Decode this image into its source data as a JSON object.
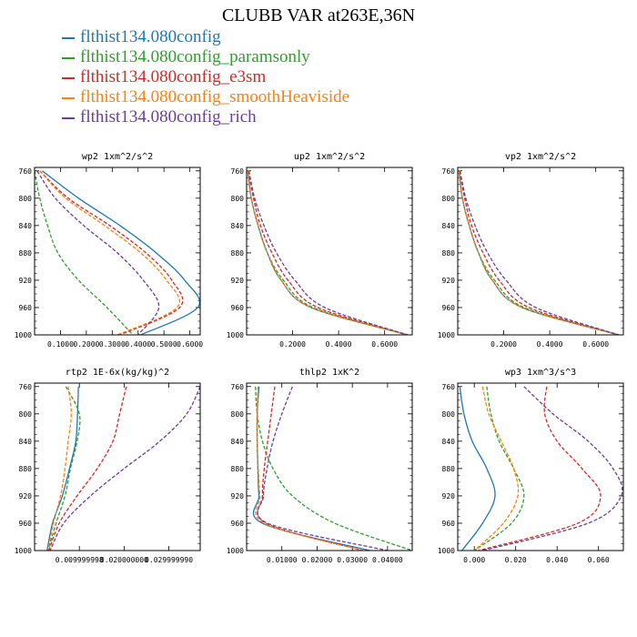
{
  "title": "CLUBB VAR at263E,36N",
  "colors": {
    "flthist134.080config": "#1f77b4",
    "flthist134.080config_paramsonly": "#2ca02c",
    "flthist134.080config_e3sm": "#d62728",
    "flthist134.080config_smoothHeaviside": "#ff7f0e",
    "flthist134.080config_rich": "#6a3d9a"
  },
  "legend": [
    {
      "label": "flthist134.080config",
      "color": "#1f77b4"
    },
    {
      "label": "flthist134.080config_paramsonly",
      "color": "#2ca02c"
    },
    {
      "label": "flthist134.080config_e3sm",
      "color": "#d62728"
    },
    {
      "label": "flthist134.080config_smoothHeaviside",
      "color": "#ff7f0e"
    },
    {
      "label": "flthist134.080config_rich",
      "color": "#6a3d9a"
    }
  ],
  "chart_data": [
    {
      "type": "line",
      "title": "wp2  1xm^2/s^2",
      "xlim": [
        0.0,
        0.64
      ],
      "ylim": [
        1000,
        755
      ],
      "yticks": [
        760,
        800,
        840,
        880,
        920,
        960,
        1000
      ],
      "xticks": [
        0.1,
        0.2,
        0.3,
        0.4,
        0.5,
        0.6
      ],
      "xtick_labels": [
        "0.1000",
        "0.2000",
        "0.3000",
        "0.4000",
        "0.5000",
        "0.6000"
      ],
      "y": [
        760,
        800,
        840,
        880,
        920,
        960,
        1000
      ],
      "series": [
        {
          "name": "flthist134.080config",
          "x": [
            0.03,
            0.17,
            0.33,
            0.47,
            0.58,
            0.63,
            0.41
          ]
        },
        {
          "name": "flthist134.080config_paramsonly",
          "x": [
            0.0,
            0.02,
            0.05,
            0.09,
            0.17,
            0.28,
            0.38
          ]
        },
        {
          "name": "flthist134.080config_e3sm",
          "x": [
            0.02,
            0.13,
            0.29,
            0.43,
            0.53,
            0.56,
            0.33
          ]
        },
        {
          "name": "flthist134.080config_smoothHeaviside",
          "x": [
            0.02,
            0.12,
            0.27,
            0.41,
            0.51,
            0.55,
            0.32
          ]
        },
        {
          "name": "flthist134.080config_rich",
          "x": [
            0.01,
            0.08,
            0.19,
            0.32,
            0.42,
            0.48,
            0.4
          ]
        }
      ]
    },
    {
      "type": "line",
      "title": "up2  1xm^2/s^2",
      "xlim": [
        0.0,
        0.72
      ],
      "ylim": [
        1000,
        755
      ],
      "yticks": [
        760,
        800,
        840,
        880,
        920,
        960,
        1000
      ],
      "xticks": [
        0.2,
        0.4,
        0.6
      ],
      "xtick_labels": [
        "0.2000",
        "0.4000",
        "0.6000"
      ],
      "y": [
        760,
        800,
        840,
        880,
        920,
        960,
        1000
      ],
      "series": [
        {
          "name": "flthist134.080config",
          "x": [
            0.005,
            0.02,
            0.05,
            0.09,
            0.15,
            0.28,
            0.7
          ]
        },
        {
          "name": "flthist134.080config_paramsonly",
          "x": [
            0.006,
            0.02,
            0.05,
            0.09,
            0.16,
            0.29,
            0.7
          ]
        },
        {
          "name": "flthist134.080config_e3sm",
          "x": [
            0.008,
            0.03,
            0.06,
            0.11,
            0.18,
            0.31,
            0.7
          ]
        },
        {
          "name": "flthist134.080config_smoothHeaviside",
          "x": [
            0.004,
            0.02,
            0.05,
            0.09,
            0.15,
            0.28,
            0.7
          ]
        },
        {
          "name": "flthist134.080config_rich",
          "x": [
            0.01,
            0.035,
            0.075,
            0.13,
            0.21,
            0.34,
            0.7
          ]
        }
      ]
    },
    {
      "type": "line",
      "title": "vp2  1xm^2/s^2",
      "xlim": [
        0.0,
        0.72
      ],
      "ylim": [
        1000,
        755
      ],
      "yticks": [
        760,
        800,
        840,
        880,
        920,
        960,
        1000
      ],
      "xticks": [
        0.2,
        0.4,
        0.6
      ],
      "xtick_labels": [
        "0.2000",
        "0.4000",
        "0.6000"
      ],
      "y": [
        760,
        800,
        840,
        880,
        920,
        960,
        1000
      ],
      "series": [
        {
          "name": "flthist134.080config",
          "x": [
            0.005,
            0.02,
            0.05,
            0.09,
            0.15,
            0.28,
            0.7
          ]
        },
        {
          "name": "flthist134.080config_paramsonly",
          "x": [
            0.006,
            0.02,
            0.05,
            0.09,
            0.16,
            0.29,
            0.7
          ]
        },
        {
          "name": "flthist134.080config_e3sm",
          "x": [
            0.008,
            0.03,
            0.06,
            0.11,
            0.18,
            0.31,
            0.7
          ]
        },
        {
          "name": "flthist134.080config_smoothHeaviside",
          "x": [
            0.004,
            0.02,
            0.05,
            0.09,
            0.15,
            0.28,
            0.7
          ]
        },
        {
          "name": "flthist134.080config_rich",
          "x": [
            0.01,
            0.035,
            0.075,
            0.13,
            0.21,
            0.34,
            0.7
          ]
        }
      ]
    },
    {
      "type": "line",
      "title": "rtp2  1E-6x(kg/kg)^2",
      "xlim": [
        0.0,
        0.037
      ],
      "ylim": [
        1000,
        755
      ],
      "yticks": [
        760,
        800,
        840,
        880,
        920,
        960,
        1000
      ],
      "xticks": [
        0.01,
        0.02,
        0.03
      ],
      "xtick_labels": [
        "0.009999998",
        "0.020000000",
        "0.029999990"
      ],
      "y": [
        760,
        800,
        840,
        880,
        920,
        960,
        1000
      ],
      "series": [
        {
          "name": "flthist134.080config",
          "x": [
            0.0098,
            0.0096,
            0.0092,
            0.0078,
            0.0062,
            0.004,
            0.0028
          ]
        },
        {
          "name": "flthist134.080config_paramsonly",
          "x": [
            0.007,
            0.01,
            0.0095,
            0.008,
            0.0068,
            0.0048,
            0.003
          ]
        },
        {
          "name": "flthist134.080config_e3sm",
          "x": [
            0.0205,
            0.019,
            0.0175,
            0.014,
            0.0095,
            0.0055,
            0.0032
          ]
        },
        {
          "name": "flthist134.080config_smoothHeaviside",
          "x": [
            0.0075,
            0.0082,
            0.0075,
            0.0068,
            0.0058,
            0.0042,
            0.003
          ]
        },
        {
          "name": "flthist134.080config_rich",
          "x": [
            0.037,
            0.034,
            0.028,
            0.02,
            0.0125,
            0.0065,
            0.0035
          ]
        }
      ]
    },
    {
      "type": "line",
      "title": "thlp2  1xK^2",
      "xlim": [
        0.0,
        0.047
      ],
      "ylim": [
        1000,
        755
      ],
      "yticks": [
        760,
        800,
        840,
        880,
        920,
        960,
        1000
      ],
      "xticks": [
        0.01,
        0.02,
        0.03,
        0.04
      ],
      "xtick_labels": [
        "0.01000",
        "0.02000",
        "0.03000",
        "0.04000"
      ],
      "y": [
        760,
        800,
        840,
        880,
        920,
        960,
        1000
      ],
      "series": [
        {
          "name": "flthist134.080config",
          "x": [
            0.0035,
            0.003,
            0.003,
            0.0032,
            0.0035,
            0.0045,
            0.035
          ]
        },
        {
          "name": "flthist134.080config_paramsonly",
          "x": [
            0.0025,
            0.003,
            0.0045,
            0.0075,
            0.013,
            0.025,
            0.047
          ]
        },
        {
          "name": "flthist134.080config_e3sm",
          "x": [
            0.008,
            0.007,
            0.006,
            0.005,
            0.0045,
            0.0055,
            0.033
          ]
        },
        {
          "name": "flthist134.080config_smoothHeaviside",
          "x": [
            0.0032,
            0.003,
            0.003,
            0.0033,
            0.0038,
            0.005,
            0.033
          ]
        },
        {
          "name": "flthist134.080config_rich",
          "x": [
            0.013,
            0.01,
            0.0075,
            0.0058,
            0.0048,
            0.006,
            0.04
          ]
        }
      ]
    },
    {
      "type": "line",
      "title": "wp3  1xm^3/s^3",
      "xlim": [
        -0.008,
        0.072
      ],
      "ylim": [
        1000,
        755
      ],
      "yticks": [
        760,
        800,
        840,
        880,
        920,
        960,
        1000
      ],
      "xticks": [
        0.0,
        0.02,
        0.04,
        0.06
      ],
      "xtick_labels": [
        "0.000",
        "0.020",
        "0.040",
        "0.060"
      ],
      "y": [
        760,
        800,
        840,
        880,
        920,
        960,
        1000
      ],
      "series": [
        {
          "name": "flthist134.080config",
          "x": [
            -0.007,
            -0.005,
            -0.001,
            0.006,
            0.01,
            0.004,
            -0.006
          ]
        },
        {
          "name": "flthist134.080config_paramsonly",
          "x": [
            0.006,
            0.008,
            0.012,
            0.019,
            0.024,
            0.018,
            0.0
          ]
        },
        {
          "name": "flthist134.080config_e3sm",
          "x": [
            0.035,
            0.034,
            0.04,
            0.052,
            0.061,
            0.05,
            0.002
          ]
        },
        {
          "name": "flthist134.080config_smoothHeaviside",
          "x": [
            0.004,
            0.007,
            0.013,
            0.019,
            0.021,
            0.014,
            0.0
          ]
        },
        {
          "name": "flthist134.080config_rich",
          "x": [
            0.024,
            0.038,
            0.055,
            0.067,
            0.071,
            0.055,
            0.004
          ]
        }
      ]
    }
  ]
}
